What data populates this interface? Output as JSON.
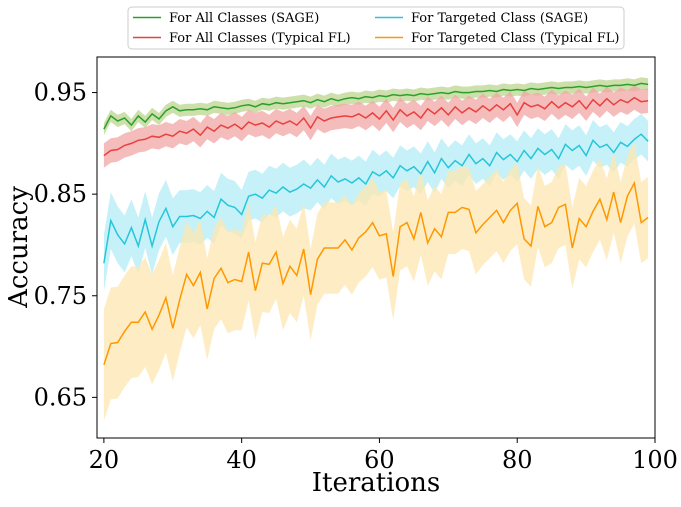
{
  "chart_data": {
    "type": "line",
    "title": "",
    "xlabel": "Iterations",
    "ylabel": "Accuracy",
    "xlim": [
      19,
      100
    ],
    "ylim": [
      0.61,
      0.985
    ],
    "x_ticks": [
      20,
      40,
      60,
      80,
      100
    ],
    "x_tick_labels": [
      "20",
      "40",
      "60",
      "80",
      "100"
    ],
    "y_ticks": [
      0.65,
      0.75,
      0.85,
      0.95
    ],
    "y_tick_labels": [
      "0.65",
      "0.75",
      "0.85",
      "0.95"
    ],
    "legend_position": "top (above plot), 2 columns",
    "grid": false,
    "x": [
      20,
      21,
      22,
      23,
      24,
      25,
      26,
      27,
      28,
      29,
      30,
      31,
      32,
      33,
      34,
      35,
      36,
      37,
      38,
      39,
      40,
      41,
      42,
      43,
      44,
      45,
      46,
      47,
      48,
      49,
      50,
      51,
      52,
      53,
      54,
      55,
      56,
      57,
      58,
      59,
      60,
      61,
      62,
      63,
      64,
      65,
      66,
      67,
      68,
      69,
      70,
      71,
      72,
      73,
      74,
      75,
      76,
      77,
      78,
      79,
      80,
      81,
      82,
      83,
      84,
      85,
      86,
      87,
      88,
      89,
      90,
      91,
      92,
      93,
      94,
      95,
      96,
      97,
      98,
      99
    ],
    "series": [
      {
        "name": "For All Classes (SAGE)",
        "color": "#2ca02c",
        "band_color": "#bcd68f",
        "values": [
          0.914,
          0.927,
          0.922,
          0.925,
          0.918,
          0.927,
          0.921,
          0.929,
          0.924,
          0.932,
          0.936,
          0.932,
          0.933,
          0.933,
          0.934,
          0.933,
          0.936,
          0.935,
          0.934,
          0.935,
          0.937,
          0.938,
          0.936,
          0.939,
          0.938,
          0.94,
          0.939,
          0.94,
          0.941,
          0.942,
          0.94,
          0.943,
          0.941,
          0.944,
          0.942,
          0.944,
          0.945,
          0.944,
          0.946,
          0.945,
          0.947,
          0.946,
          0.948,
          0.947,
          0.948,
          0.947,
          0.949,
          0.948,
          0.949,
          0.95,
          0.949,
          0.951,
          0.95,
          0.95,
          0.951,
          0.951,
          0.952,
          0.951,
          0.953,
          0.952,
          0.953,
          0.952,
          0.954,
          0.953,
          0.954,
          0.955,
          0.954,
          0.955,
          0.955,
          0.956,
          0.955,
          0.956,
          0.957,
          0.956,
          0.957,
          0.957,
          0.958,
          0.957,
          0.959,
          0.958
        ],
        "band": [
          0.006,
          0.006,
          0.006,
          0.006,
          0.006,
          0.006,
          0.006,
          0.006,
          0.006,
          0.006,
          0.006,
          0.006,
          0.006,
          0.006,
          0.006,
          0.006,
          0.006,
          0.006,
          0.006,
          0.006,
          0.006,
          0.006,
          0.006,
          0.006,
          0.006,
          0.006,
          0.006,
          0.006,
          0.006,
          0.006,
          0.006,
          0.006,
          0.006,
          0.006,
          0.006,
          0.006,
          0.006,
          0.006,
          0.006,
          0.006,
          0.006,
          0.006,
          0.006,
          0.006,
          0.006,
          0.006,
          0.006,
          0.006,
          0.006,
          0.006,
          0.006,
          0.006,
          0.006,
          0.006,
          0.006,
          0.006,
          0.006,
          0.006,
          0.006,
          0.006,
          0.006,
          0.006,
          0.006,
          0.006,
          0.006,
          0.006,
          0.006,
          0.006,
          0.006,
          0.006,
          0.006,
          0.006,
          0.006,
          0.006,
          0.006,
          0.006,
          0.006,
          0.006,
          0.006,
          0.006
        ]
      },
      {
        "name": "For All Classes (Typical FL)",
        "color": "#e8413f",
        "band_color": "#f2a6a6",
        "values": [
          0.888,
          0.893,
          0.894,
          0.898,
          0.9,
          0.903,
          0.904,
          0.907,
          0.906,
          0.909,
          0.907,
          0.912,
          0.91,
          0.914,
          0.908,
          0.916,
          0.912,
          0.918,
          0.915,
          0.919,
          0.914,
          0.921,
          0.918,
          0.92,
          0.916,
          0.922,
          0.919,
          0.922,
          0.918,
          0.925,
          0.915,
          0.926,
          0.922,
          0.925,
          0.926,
          0.927,
          0.926,
          0.929,
          0.925,
          0.93,
          0.924,
          0.932,
          0.923,
          0.933,
          0.927,
          0.931,
          0.925,
          0.934,
          0.929,
          0.935,
          0.928,
          0.936,
          0.93,
          0.935,
          0.931,
          0.937,
          0.932,
          0.938,
          0.933,
          0.939,
          0.928,
          0.94,
          0.936,
          0.938,
          0.934,
          0.941,
          0.935,
          0.94,
          0.936,
          0.942,
          0.934,
          0.943,
          0.937,
          0.944,
          0.938,
          0.943,
          0.94,
          0.945,
          0.941,
          0.942
        ],
        "band": [
          0.012,
          0.012,
          0.012,
          0.012,
          0.012,
          0.012,
          0.012,
          0.012,
          0.012,
          0.012,
          0.012,
          0.012,
          0.012,
          0.012,
          0.012,
          0.012,
          0.012,
          0.012,
          0.012,
          0.012,
          0.012,
          0.012,
          0.012,
          0.012,
          0.012,
          0.012,
          0.012,
          0.012,
          0.012,
          0.012,
          0.012,
          0.012,
          0.012,
          0.012,
          0.012,
          0.012,
          0.012,
          0.012,
          0.012,
          0.012,
          0.012,
          0.012,
          0.012,
          0.012,
          0.012,
          0.012,
          0.012,
          0.012,
          0.012,
          0.012,
          0.012,
          0.012,
          0.012,
          0.012,
          0.012,
          0.012,
          0.012,
          0.012,
          0.012,
          0.012,
          0.012,
          0.012,
          0.012,
          0.012,
          0.012,
          0.012,
          0.012,
          0.012,
          0.012,
          0.012,
          0.012,
          0.012,
          0.012,
          0.012,
          0.012,
          0.012,
          0.012,
          0.012,
          0.012,
          0.012
        ]
      },
      {
        "name": "For Targeted Class (SAGE)",
        "color": "#26c6da",
        "band_color": "#b4ecf5",
        "values": [
          0.782,
          0.824,
          0.81,
          0.801,
          0.817,
          0.799,
          0.825,
          0.799,
          0.823,
          0.836,
          0.818,
          0.828,
          0.828,
          0.829,
          0.826,
          0.833,
          0.827,
          0.845,
          0.839,
          0.837,
          0.83,
          0.848,
          0.85,
          0.846,
          0.854,
          0.851,
          0.857,
          0.852,
          0.855,
          0.86,
          0.856,
          0.864,
          0.857,
          0.868,
          0.862,
          0.865,
          0.861,
          0.866,
          0.86,
          0.872,
          0.868,
          0.873,
          0.866,
          0.878,
          0.873,
          0.877,
          0.87,
          0.882,
          0.871,
          0.885,
          0.876,
          0.883,
          0.878,
          0.889,
          0.88,
          0.885,
          0.878,
          0.891,
          0.884,
          0.889,
          0.882,
          0.893,
          0.885,
          0.895,
          0.889,
          0.894,
          0.885,
          0.899,
          0.893,
          0.898,
          0.888,
          0.903,
          0.896,
          0.899,
          0.891,
          0.901,
          0.897,
          0.904,
          0.909,
          0.902
        ],
        "band": [
          0.028,
          0.028,
          0.028,
          0.028,
          0.028,
          0.028,
          0.028,
          0.028,
          0.028,
          0.028,
          0.028,
          0.026,
          0.026,
          0.026,
          0.026,
          0.026,
          0.026,
          0.026,
          0.026,
          0.026,
          0.024,
          0.024,
          0.024,
          0.024,
          0.024,
          0.024,
          0.024,
          0.024,
          0.024,
          0.024,
          0.022,
          0.022,
          0.022,
          0.022,
          0.022,
          0.022,
          0.022,
          0.022,
          0.022,
          0.022,
          0.02,
          0.02,
          0.02,
          0.02,
          0.02,
          0.02,
          0.02,
          0.02,
          0.02,
          0.02,
          0.02,
          0.02,
          0.02,
          0.02,
          0.02,
          0.02,
          0.02,
          0.02,
          0.02,
          0.02,
          0.02,
          0.02,
          0.02,
          0.02,
          0.02,
          0.02,
          0.02,
          0.02,
          0.02,
          0.02,
          0.02,
          0.02,
          0.02,
          0.02,
          0.02,
          0.02,
          0.02,
          0.02,
          0.02,
          0.02
        ]
      },
      {
        "name": "For Targeted Class (Typical FL)",
        "color": "#ff9800",
        "band_color": "#fde7b0",
        "values": [
          0.682,
          0.703,
          0.704,
          0.715,
          0.724,
          0.724,
          0.734,
          0.717,
          0.731,
          0.748,
          0.718,
          0.746,
          0.771,
          0.76,
          0.773,
          0.737,
          0.767,
          0.777,
          0.763,
          0.766,
          0.764,
          0.793,
          0.755,
          0.782,
          0.781,
          0.793,
          0.762,
          0.779,
          0.77,
          0.796,
          0.751,
          0.786,
          0.797,
          0.797,
          0.797,
          0.805,
          0.795,
          0.807,
          0.813,
          0.822,
          0.809,
          0.811,
          0.769,
          0.818,
          0.822,
          0.806,
          0.832,
          0.802,
          0.816,
          0.808,
          0.832,
          0.832,
          0.837,
          0.835,
          0.812,
          0.82,
          0.827,
          0.834,
          0.822,
          0.834,
          0.841,
          0.806,
          0.799,
          0.838,
          0.818,
          0.822,
          0.837,
          0.84,
          0.797,
          0.826,
          0.818,
          0.833,
          0.845,
          0.825,
          0.852,
          0.822,
          0.848,
          0.861,
          0.822,
          0.827
        ],
        "band": [
          0.055,
          0.055,
          0.055,
          0.055,
          0.055,
          0.054,
          0.054,
          0.054,
          0.054,
          0.054,
          0.052,
          0.052,
          0.052,
          0.052,
          0.052,
          0.05,
          0.05,
          0.05,
          0.05,
          0.05,
          0.048,
          0.048,
          0.048,
          0.048,
          0.048,
          0.046,
          0.046,
          0.046,
          0.046,
          0.046,
          0.045,
          0.045,
          0.045,
          0.045,
          0.045,
          0.044,
          0.044,
          0.044,
          0.044,
          0.044,
          0.043,
          0.043,
          0.043,
          0.043,
          0.043,
          0.042,
          0.042,
          0.042,
          0.042,
          0.042,
          0.041,
          0.041,
          0.041,
          0.041,
          0.041,
          0.04,
          0.04,
          0.04,
          0.04,
          0.04,
          0.04,
          0.04,
          0.04,
          0.04,
          0.04,
          0.04,
          0.04,
          0.04,
          0.04,
          0.04,
          0.04,
          0.04,
          0.04,
          0.04,
          0.04,
          0.04,
          0.04,
          0.04,
          0.04,
          0.04
        ]
      }
    ]
  }
}
